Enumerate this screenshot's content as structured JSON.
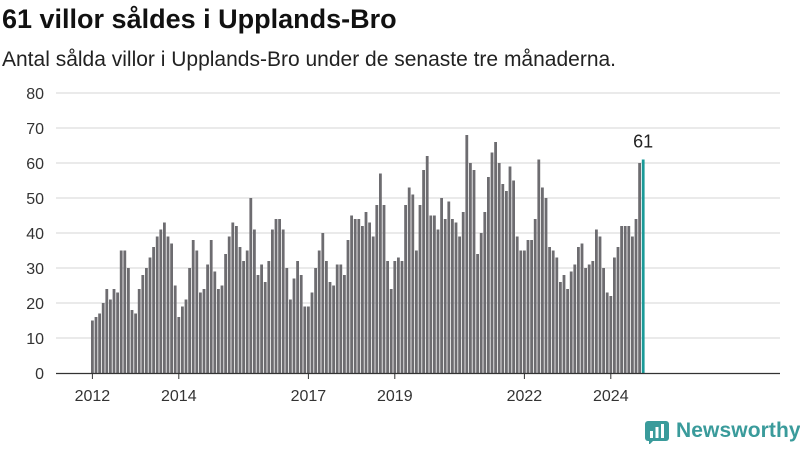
{
  "header": {
    "title": "61 villor såldes i Upplands-Bro",
    "subtitle": "Antal sålda villor i Upplands-Bro under de senaste tre månaderna."
  },
  "brand": {
    "name": "Newsworthy",
    "color": "#3a9b9b",
    "logo_icon": "newsworthy-chart-logo-icon"
  },
  "colors": {
    "bar": "#6d6c70",
    "highlight": "#1a9a98",
    "grid": "#d6d6d6",
    "axis": "#333333",
    "text": "#333333"
  },
  "chart_data": {
    "type": "bar",
    "title": "61 villor såldes i Upplands-Bro",
    "subtitle": "Antal sålda villor i Upplands-Bro under de senaste tre månaderna.",
    "xlabel": "",
    "ylabel": "",
    "ylim": [
      0,
      80
    ],
    "yticks": [
      0,
      10,
      20,
      30,
      40,
      50,
      60,
      70,
      80
    ],
    "x_tick_labels": [
      "2012",
      "2014",
      "2017",
      "2019",
      "2022",
      "2024"
    ],
    "x_tick_months": [
      "2012-01",
      "2014-01",
      "2017-01",
      "2019-01",
      "2022-01",
      "2024-01"
    ],
    "grid": "horizontal",
    "legend": "none",
    "start_month": "2012-01",
    "values": [
      15,
      16,
      17,
      20,
      24,
      21,
      24,
      23,
      35,
      35,
      30,
      18,
      17,
      24,
      28,
      30,
      33,
      36,
      39,
      41,
      43,
      39,
      37,
      25,
      16,
      19,
      21,
      30,
      38,
      35,
      23,
      24,
      31,
      38,
      29,
      24,
      25,
      34,
      39,
      43,
      42,
      36,
      32,
      35,
      50,
      41,
      28,
      31,
      26,
      32,
      41,
      44,
      44,
      41,
      30,
      21,
      27,
      32,
      28,
      19,
      19,
      23,
      30,
      35,
      40,
      32,
      26,
      25,
      31,
      31,
      28,
      38,
      45,
      44,
      44,
      42,
      46,
      43,
      39,
      48,
      57,
      48,
      32,
      24,
      32,
      33,
      32,
      48,
      53,
      51,
      35,
      48,
      58,
      62,
      45,
      45,
      41,
      50,
      44,
      49,
      44,
      43,
      39,
      46,
      68,
      60,
      58,
      34,
      40,
      46,
      56,
      63,
      66,
      60,
      54,
      52,
      59,
      55,
      39,
      35,
      35,
      38,
      38,
      44,
      61,
      53,
      50,
      36,
      35,
      33,
      26,
      28,
      24,
      29,
      31,
      36,
      37,
      30,
      31,
      32,
      41,
      39,
      30,
      23,
      22,
      33,
      36,
      42,
      42,
      42,
      39,
      44,
      60,
      61
    ],
    "highlight_last": true,
    "annotation": "61"
  }
}
